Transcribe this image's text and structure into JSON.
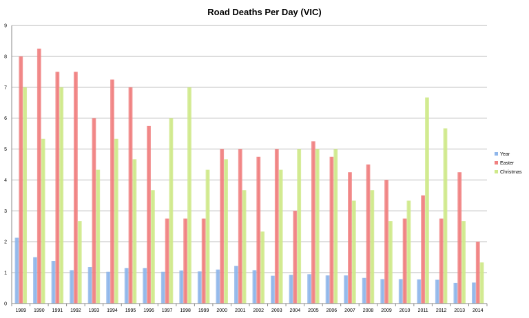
{
  "chart_data": {
    "type": "bar",
    "title": "Road Deaths Per Day (VIC)",
    "xlabel": "",
    "ylabel": "",
    "ylim": [
      0,
      9
    ],
    "yticks": [
      0,
      1,
      2,
      3,
      4,
      5,
      6,
      7,
      8,
      9
    ],
    "grid": true,
    "legend_position": "right",
    "categories": [
      "1989",
      "1990",
      "1991",
      "1992",
      "1993",
      "1994",
      "1995",
      "1996",
      "1997",
      "1998",
      "1999",
      "2000",
      "2001",
      "2002",
      "2003",
      "2004",
      "2005",
      "2006",
      "2007",
      "2008",
      "2009",
      "2010",
      "2011",
      "2012",
      "2013",
      "2014"
    ],
    "series": [
      {
        "name": "Year",
        "color": "#8fb6ea",
        "values": [
          2.13,
          1.5,
          1.38,
          1.08,
          1.18,
          1.03,
          1.15,
          1.15,
          1.03,
          1.07,
          1.04,
          1.1,
          1.22,
          1.08,
          0.9,
          0.93,
          0.95,
          0.91,
          0.91,
          0.83,
          0.79,
          0.79,
          0.78,
          0.77,
          0.67,
          0.68
        ]
      },
      {
        "name": "Easter",
        "color": "#f08080",
        "values": [
          8.0,
          8.25,
          7.5,
          7.5,
          6.0,
          7.25,
          7.0,
          5.75,
          2.75,
          2.75,
          2.75,
          5.0,
          5.0,
          4.75,
          5.0,
          3.0,
          5.25,
          4.75,
          4.25,
          4.5,
          4.0,
          2.75,
          3.5,
          2.75,
          4.25,
          2.0
        ]
      },
      {
        "name": "Christmas",
        "color": "#cfe98a",
        "values": [
          7.0,
          5.33,
          7.0,
          2.67,
          4.33,
          5.33,
          4.67,
          3.67,
          6.0,
          7.0,
          4.33,
          4.67,
          3.67,
          2.33,
          4.33,
          5.0,
          5.0,
          5.0,
          3.33,
          3.67,
          2.67,
          3.33,
          6.67,
          5.67,
          2.67,
          1.33
        ]
      }
    ]
  }
}
